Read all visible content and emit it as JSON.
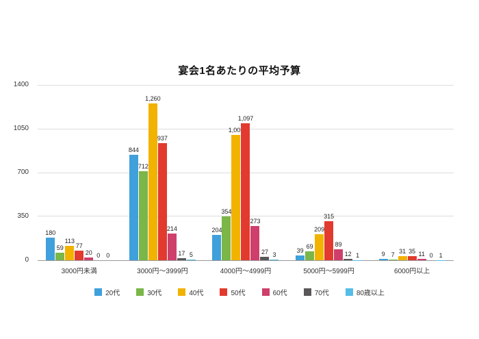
{
  "title": "宴会1名あたりの平均予算",
  "chart_data": {
    "type": "bar",
    "title": "宴会1名あたりの平均予算",
    "categories": [
      "3000円未満",
      "3000円〜3999円",
      "4000円〜4999円",
      "5000円〜5999円",
      "6000円以上"
    ],
    "series": [
      {
        "name": "20代",
        "color": "#3FA0DB",
        "values": [
          180,
          844,
          204,
          39,
          9
        ]
      },
      {
        "name": "30代",
        "color": "#7AB648",
        "values": [
          59,
          712,
          354,
          69,
          7
        ]
      },
      {
        "name": "40代",
        "color": "#F2B200",
        "values": [
          113,
          1260,
          1005,
          209,
          31
        ]
      },
      {
        "name": "50代",
        "color": "#E23A2E",
        "values": [
          77,
          937,
          1097,
          315,
          35
        ]
      },
      {
        "name": "60代",
        "color": "#CE3F6B",
        "values": [
          20,
          214,
          273,
          89,
          11
        ]
      },
      {
        "name": "70代",
        "color": "#595757",
        "values": [
          0,
          17,
          27,
          12,
          0
        ]
      },
      {
        "name": "80歳以上",
        "color": "#55BDE8",
        "values": [
          0,
          5,
          3,
          1,
          1
        ]
      }
    ],
    "ylim": [
      0,
      1400
    ],
    "yticks": [
      0,
      350,
      700,
      1050,
      1400
    ],
    "grid": true,
    "legend_position": "bottom",
    "data_labels": true
  }
}
